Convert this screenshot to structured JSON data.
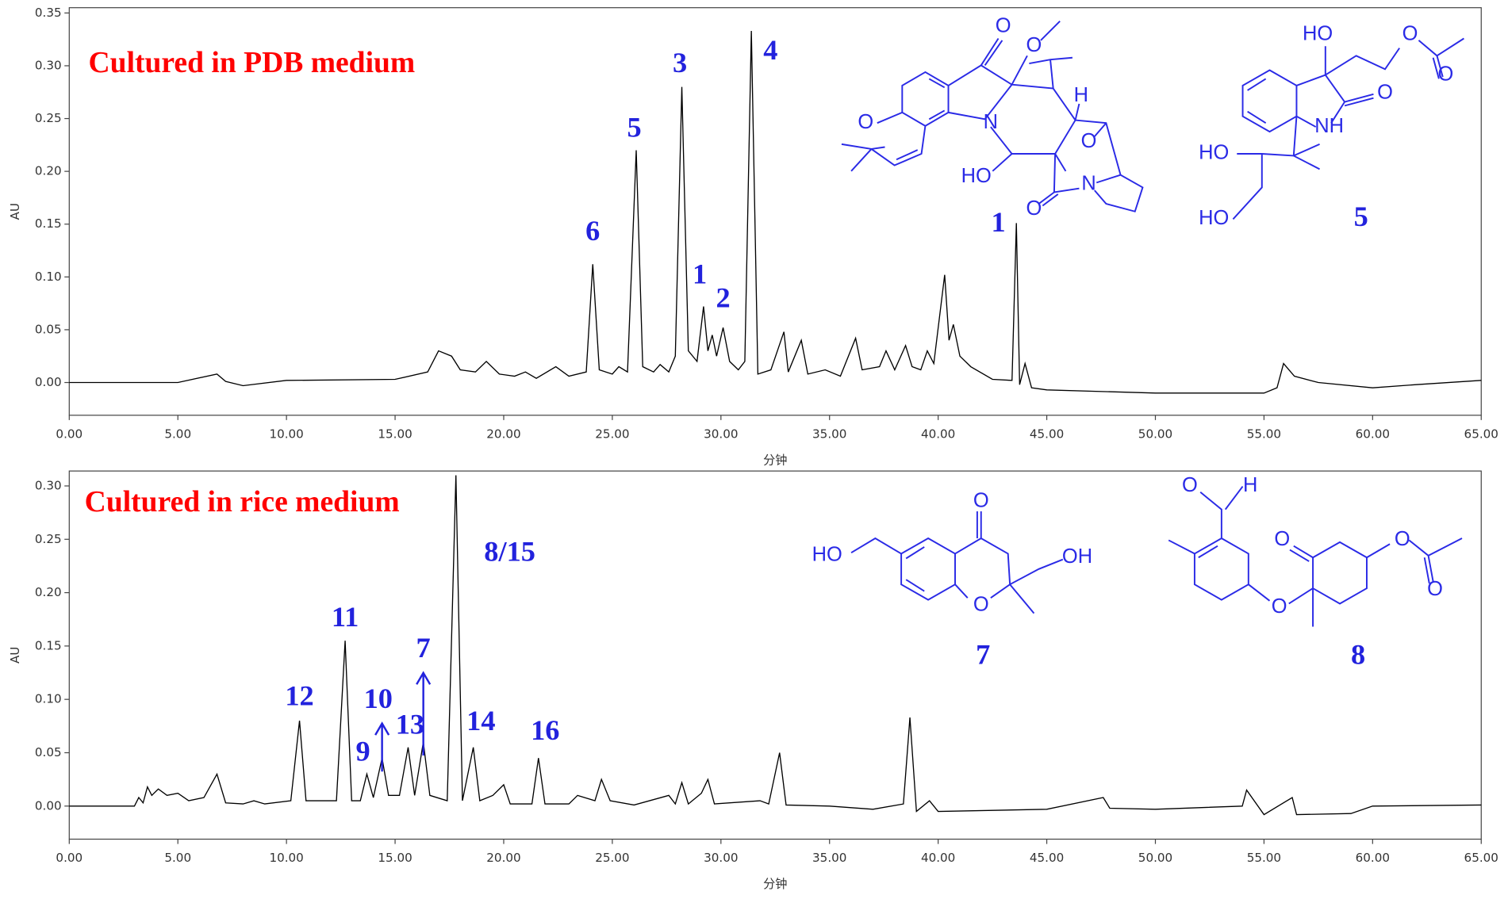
{
  "chart_data": [
    {
      "type": "line",
      "title": "Cultured in PDB medium",
      "title_color": "#ff0000",
      "ylabel": "AU",
      "xlabel": "分钟",
      "color": "#000000",
      "xlim": [
        0,
        65
      ],
      "ylim": [
        -0.031,
        0.355
      ],
      "xticks": [
        {
          "value": 0,
          "label": "0.00"
        },
        {
          "value": 5,
          "label": "5.00"
        },
        {
          "value": 10,
          "label": "10.00"
        },
        {
          "value": 15,
          "label": "15.00"
        },
        {
          "value": 20,
          "label": "20.00"
        },
        {
          "value": 25,
          "label": "25.00"
        },
        {
          "value": 30,
          "label": "30.00"
        },
        {
          "value": 35,
          "label": "35.00"
        },
        {
          "value": 40,
          "label": "40.00"
        },
        {
          "value": 45,
          "label": "45.00"
        },
        {
          "value": 50,
          "label": "50.00"
        },
        {
          "value": 55,
          "label": "55.00"
        },
        {
          "value": 60,
          "label": "60.00"
        },
        {
          "value": 65,
          "label": "65.00"
        }
      ],
      "yticks": [
        {
          "value": 0,
          "label": "0.00"
        },
        {
          "value": 0.05,
          "label": "0.05"
        },
        {
          "value": 0.1,
          "label": "0.10"
        },
        {
          "value": 0.15,
          "label": "0.15"
        },
        {
          "value": 0.2,
          "label": "0.20"
        },
        {
          "value": 0.25,
          "label": "0.25"
        },
        {
          "value": 0.3,
          "label": "0.30"
        },
        {
          "value": 0.35,
          "label": "0.35"
        }
      ],
      "x": [
        0,
        5,
        6.8,
        7.2,
        8,
        10,
        15,
        16.5,
        17,
        17.6,
        18,
        18.7,
        19.2,
        19.8,
        20.5,
        21,
        21.5,
        22.4,
        23,
        23.8,
        24.1,
        24.4,
        25,
        25.3,
        25.7,
        26.1,
        26.4,
        26.9,
        27.2,
        27.6,
        27.9,
        28.2,
        28.5,
        28.9,
        29.2,
        29.4,
        29.6,
        29.8,
        30.1,
        30.4,
        30.8,
        31.1,
        31.4,
        31.7,
        32.3,
        32.9,
        33.1,
        33.7,
        34,
        34.8,
        35.5,
        36.2,
        36.5,
        37.3,
        37.6,
        38,
        38.5,
        38.8,
        39.2,
        39.5,
        39.8,
        40.3,
        40.5,
        40.7,
        41,
        41.5,
        42.5,
        43.4,
        43.6,
        43.75,
        44,
        44.3,
        45,
        50,
        55,
        55.6,
        55.9,
        56.4,
        57.5,
        60,
        62,
        65
      ],
      "values": [
        0,
        0,
        0.008,
        0.001,
        -0.003,
        0.002,
        0.003,
        0.01,
        0.03,
        0.025,
        0.012,
        0.01,
        0.02,
        0.008,
        0.006,
        0.01,
        0.004,
        0.015,
        0.006,
        0.01,
        0.112,
        0.012,
        0.008,
        0.015,
        0.01,
        0.22,
        0.015,
        0.01,
        0.017,
        0.01,
        0.025,
        0.28,
        0.03,
        0.02,
        0.072,
        0.03,
        0.045,
        0.025,
        0.052,
        0.02,
        0.012,
        0.02,
        0.333,
        0.008,
        0.012,
        0.048,
        0.01,
        0.04,
        0.008,
        0.012,
        0.006,
        0.042,
        0.012,
        0.015,
        0.03,
        0.012,
        0.035,
        0.015,
        0.012,
        0.03,
        0.018,
        0.102,
        0.04,
        0.055,
        0.025,
        0.015,
        0.003,
        0.002,
        0.151,
        -0.002,
        0.018,
        -0.005,
        -0.007,
        -0.01,
        -0.01,
        -0.005,
        0.018,
        0.006,
        0,
        -0.005,
        -0.002,
        0.002
      ],
      "annotation_color": "#2222dd",
      "annotations": [
        {
          "text": "6",
          "x": 24.1
        },
        {
          "text": "5",
          "x": 26.1
        },
        {
          "text": "3",
          "x": 28.2
        },
        {
          "text": "1",
          "x": 29.2
        },
        {
          "text": "2",
          "x": 30.1
        },
        {
          "text": "4",
          "x": 31.4
        }
      ]
    },
    {
      "type": "line",
      "title": "Cultured in rice medium",
      "title_color": "#ff0000",
      "ylabel": "AU",
      "xlabel": "分钟",
      "color": "#000000",
      "xlim": [
        0,
        65
      ],
      "ylim": [
        -0.031,
        0.314
      ],
      "xticks": [
        {
          "value": 0,
          "label": "0.00"
        },
        {
          "value": 5,
          "label": "5.00"
        },
        {
          "value": 10,
          "label": "10.00"
        },
        {
          "value": 15,
          "label": "15.00"
        },
        {
          "value": 20,
          "label": "20.00"
        },
        {
          "value": 25,
          "label": "25.00"
        },
        {
          "value": 30,
          "label": "30.00"
        },
        {
          "value": 35,
          "label": "35.00"
        },
        {
          "value": 40,
          "label": "40.00"
        },
        {
          "value": 45,
          "label": "45.00"
        },
        {
          "value": 50,
          "label": "50.00"
        },
        {
          "value": 55,
          "label": "55.00"
        },
        {
          "value": 60,
          "label": "60.00"
        },
        {
          "value": 65,
          "label": "65.00"
        }
      ],
      "yticks": [
        {
          "value": 0,
          "label": "0.00"
        },
        {
          "value": 0.05,
          "label": "0.05"
        },
        {
          "value": 0.1,
          "label": "0.10"
        },
        {
          "value": 0.15,
          "label": "0.15"
        },
        {
          "value": 0.2,
          "label": "0.20"
        },
        {
          "value": 0.25,
          "label": "0.25"
        },
        {
          "value": 0.3,
          "label": "0.30"
        }
      ],
      "x": [
        0,
        3,
        3.2,
        3.4,
        3.6,
        3.8,
        4.1,
        4.5,
        5,
        5.5,
        6.2,
        6.8,
        7.2,
        8,
        8.5,
        9,
        10.2,
        10.6,
        10.9,
        12.3,
        12.7,
        13,
        13.4,
        13.7,
        14,
        14.4,
        14.7,
        15.2,
        15.6,
        15.9,
        16.3,
        16.6,
        17.4,
        17.8,
        18.1,
        18.6,
        18.9,
        19.5,
        20,
        20.3,
        21.3,
        21.6,
        21.9,
        23,
        23.4,
        24.2,
        24.5,
        24.9,
        26,
        27.6,
        27.9,
        28.2,
        28.5,
        29.1,
        29.4,
        29.7,
        31.8,
        32.2,
        32.7,
        33,
        35,
        37,
        38.4,
        38.7,
        39,
        39.6,
        40,
        45,
        47.6,
        47.9,
        50,
        54,
        54.2,
        55,
        56.3,
        56.5,
        59,
        60,
        65
      ],
      "values": [
        0,
        0,
        0.008,
        0.003,
        0.018,
        0.01,
        0.016,
        0.01,
        0.012,
        0.005,
        0.008,
        0.03,
        0.003,
        0.002,
        0.005,
        0.002,
        0.005,
        0.08,
        0.005,
        0.005,
        0.155,
        0.005,
        0.005,
        0.03,
        0.008,
        0.045,
        0.01,
        0.01,
        0.055,
        0.01,
        0.06,
        0.01,
        0.005,
        0.31,
        0.005,
        0.055,
        0.005,
        0.01,
        0.02,
        0.002,
        0.002,
        0.045,
        0.002,
        0.002,
        0.01,
        0.005,
        0.025,
        0.005,
        0.001,
        0.01,
        0.002,
        0.022,
        0.002,
        0.012,
        0.025,
        0.002,
        0.005,
        0.002,
        0.05,
        0.001,
        0,
        -0.003,
        0.002,
        0.083,
        -0.005,
        0.005,
        -0.005,
        -0.003,
        0.008,
        -0.002,
        -0.003,
        0,
        0.015,
        -0.008,
        0.008,
        -0.008,
        -0.007,
        0,
        0.001
      ],
      "annotation_color": "#2222dd",
      "annotations": [
        {
          "text": "12",
          "x": 10.6
        },
        {
          "text": "11",
          "x": 12.7
        },
        {
          "text": "9",
          "x": 13.7
        },
        {
          "text": "10",
          "x": 14.4,
          "arrow": true
        },
        {
          "text": "13",
          "x": 15.6
        },
        {
          "text": "7",
          "x": 16.3,
          "arrow": true
        },
        {
          "text": "8/15",
          "x": 17.8
        },
        {
          "text": "14",
          "x": 18.6
        },
        {
          "text": "16",
          "x": 21.6
        }
      ]
    }
  ],
  "structures": [
    {
      "number": "1",
      "atoms": [
        "O",
        "O",
        "O",
        "H",
        "HO",
        "N",
        "N",
        "O",
        "O"
      ]
    },
    {
      "number": "5",
      "atoms": [
        "HO",
        "O",
        "O",
        "O",
        "NH",
        "HO",
        "HO"
      ]
    },
    {
      "number": "7",
      "atoms": [
        "HO",
        "O",
        "OH",
        "O"
      ]
    },
    {
      "number": "8",
      "atoms": [
        "O",
        "H",
        "O",
        "O",
        "O",
        "O"
      ]
    }
  ]
}
